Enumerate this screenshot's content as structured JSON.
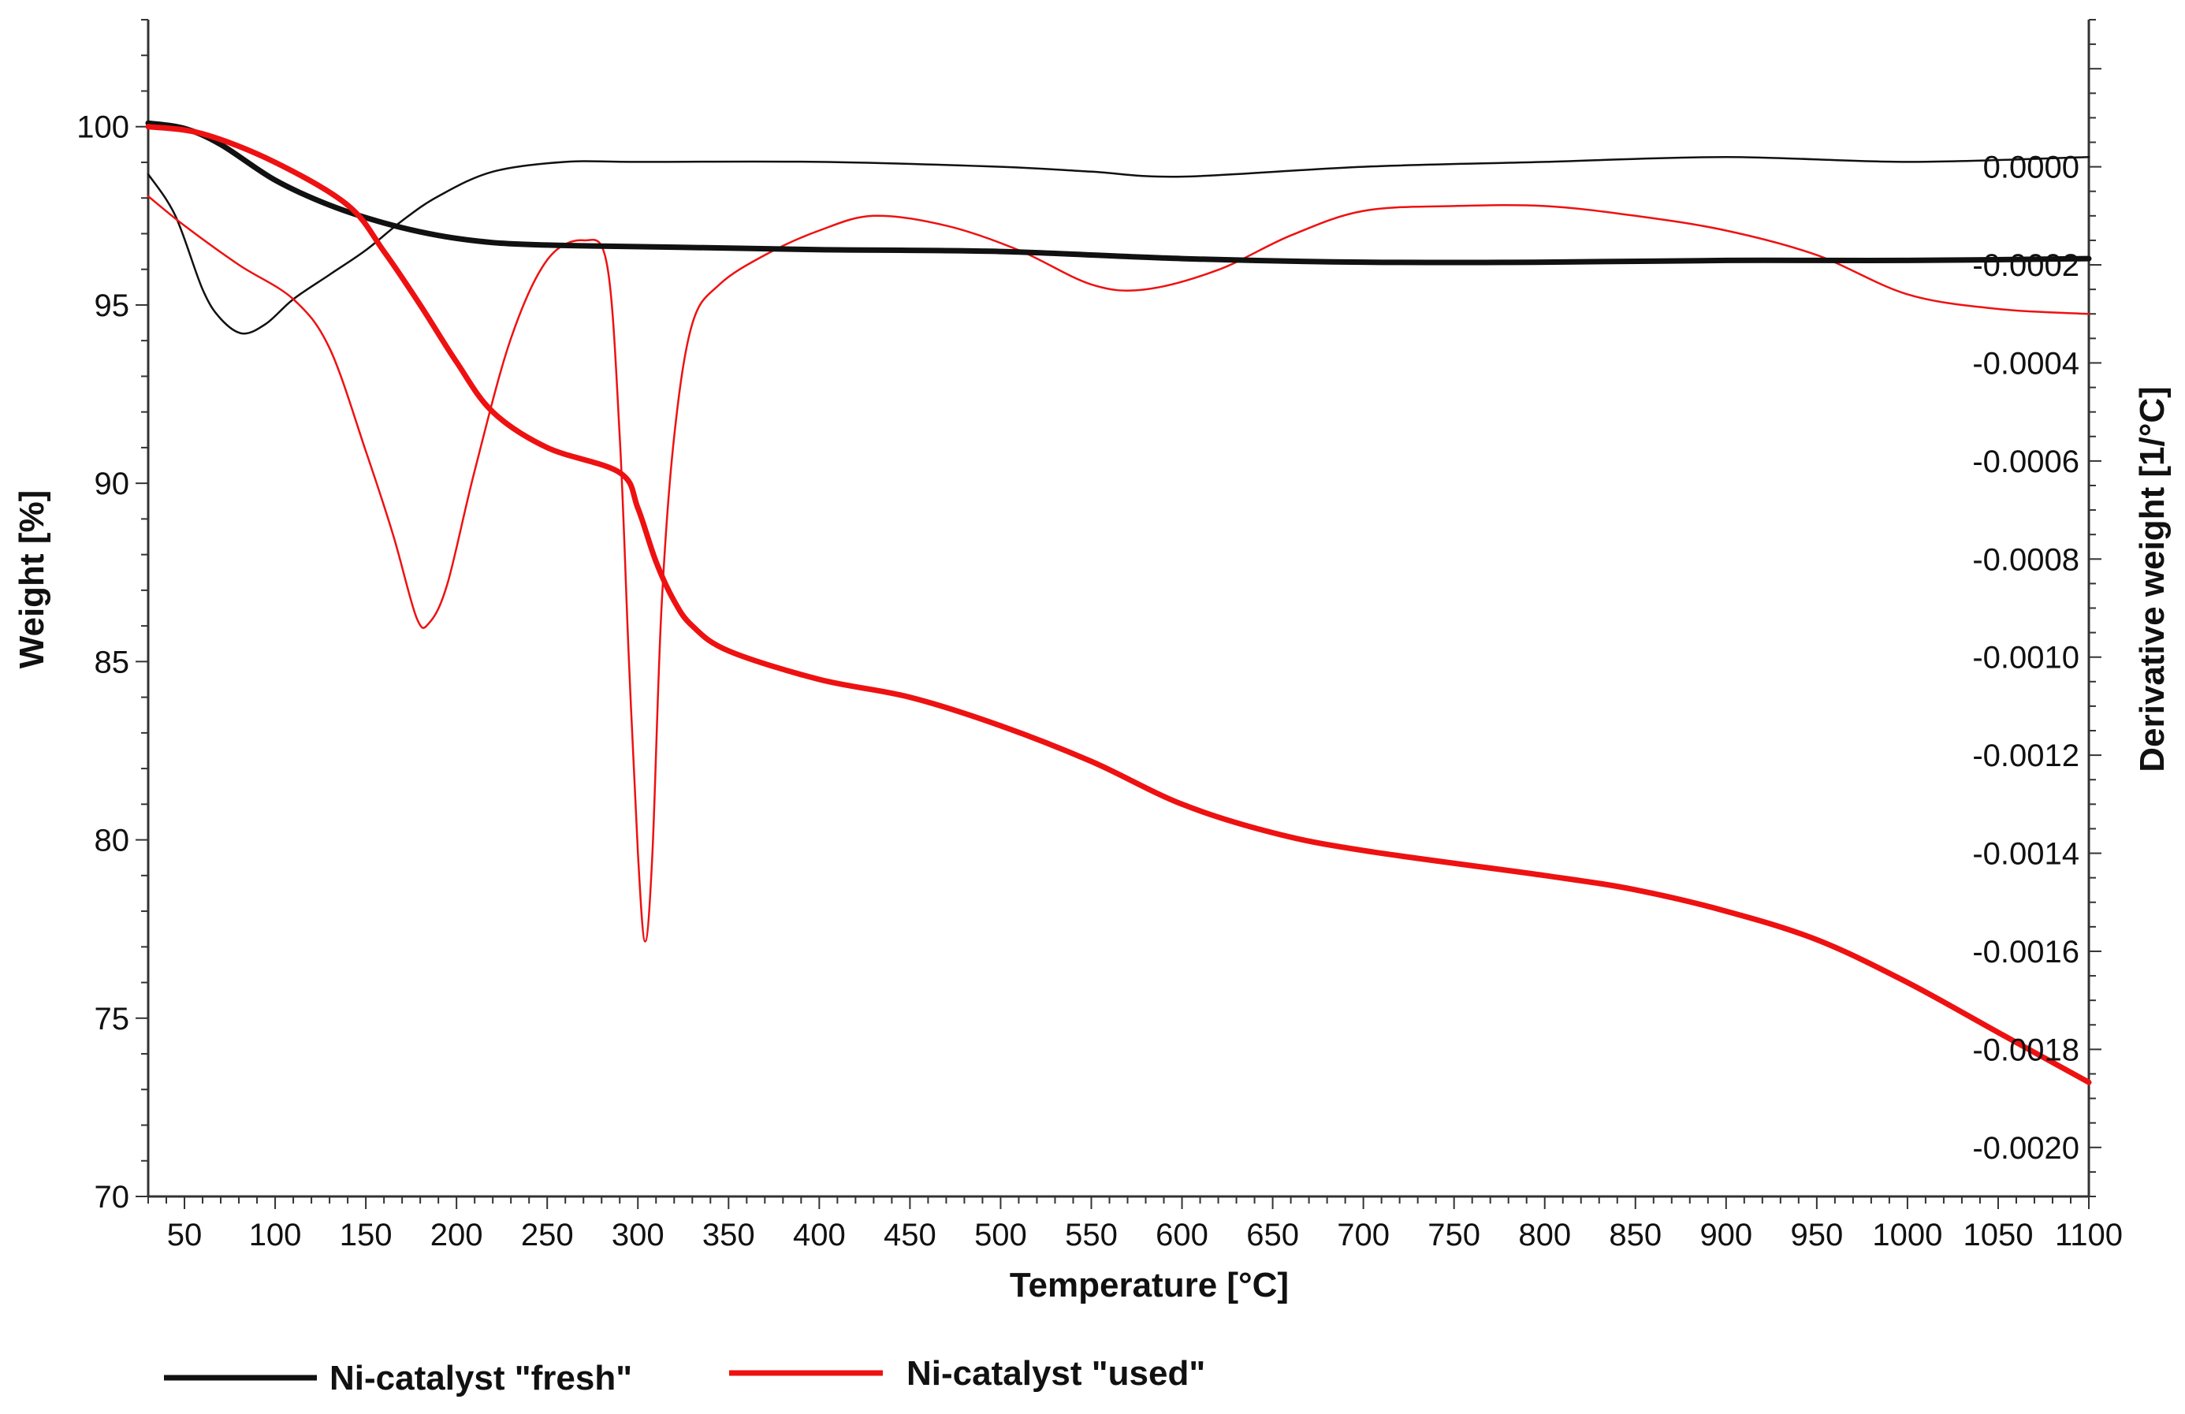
{
  "chart_data": {
    "type": "line",
    "title": "",
    "xlabel": "Temperature [°C]",
    "ylabel_left": "Weight [%]",
    "ylabel_right": "Derivative weight [1/°C]",
    "xlim": [
      30,
      1100
    ],
    "ylim_left": [
      70,
      103
    ],
    "ylim_right": [
      -0.0021,
      0.0003
    ],
    "x_ticks": [
      50,
      100,
      150,
      200,
      250,
      300,
      350,
      400,
      450,
      500,
      550,
      600,
      650,
      700,
      750,
      800,
      850,
      900,
      950,
      1000,
      1050,
      1100
    ],
    "y_left_ticks": [
      70,
      75,
      80,
      85,
      90,
      95,
      100
    ],
    "y_right_ticks": [
      "0.0000",
      "-0.0002",
      "-0.0004",
      "-0.0006",
      "-0.0008",
      "-0.0010",
      "-0.0012",
      "-0.0014",
      "-0.0016",
      "-0.0018",
      "-0.0020"
    ],
    "grid": false,
    "legend_position": "bottom",
    "series": [
      {
        "name": "Ni-catalyst \"fresh\"",
        "color": "#111111",
        "role": "weight",
        "axis": "left",
        "x": [
          30,
          50,
          70,
          100,
          130,
          160,
          190,
          220,
          250,
          280,
          320,
          400,
          500,
          600,
          700,
          800,
          900,
          1000,
          1100
        ],
        "y": [
          100.1,
          99.95,
          99.5,
          98.5,
          97.8,
          97.3,
          96.95,
          96.75,
          96.68,
          96.65,
          96.62,
          96.55,
          96.5,
          96.3,
          96.2,
          96.2,
          96.25,
          96.25,
          96.3
        ]
      },
      {
        "name": "Ni-catalyst \"used\"",
        "color": "#ee1111",
        "role": "weight",
        "axis": "left",
        "x": [
          30,
          60,
          100,
          140,
          160,
          180,
          200,
          220,
          250,
          290,
          300,
          310,
          320,
          330,
          350,
          400,
          450,
          500,
          550,
          600,
          650,
          700,
          800,
          850,
          900,
          950,
          1000,
          1050,
          1100
        ],
        "y": [
          100.0,
          99.8,
          99.0,
          97.8,
          96.5,
          95.0,
          93.4,
          92.0,
          91.0,
          90.3,
          89.3,
          87.8,
          86.7,
          86.0,
          85.3,
          84.5,
          84.0,
          83.2,
          82.2,
          81.0,
          80.2,
          79.7,
          79.0,
          78.6,
          78.0,
          77.2,
          76.0,
          74.6,
          73.2
        ]
      },
      {
        "name": "Ni-catalyst \"fresh\"",
        "color": "#111111",
        "role": "derivative",
        "axis": "right",
        "x": [
          30,
          45,
          60,
          70,
          82,
          95,
          110,
          130,
          150,
          170,
          190,
          220,
          260,
          300,
          400,
          500,
          550,
          600,
          700,
          800,
          900,
          1000,
          1100
        ],
        "y": [
          -1.5e-05,
          -0.0001,
          -0.00025,
          -0.00031,
          -0.00034,
          -0.00032,
          -0.00027,
          -0.00022,
          -0.00017,
          -0.00011,
          -6e-05,
          -1e-05,
          1e-05,
          1e-05,
          1e-05,
          0.0,
          -1e-05,
          -2e-05,
          0.0,
          1e-05,
          2e-05,
          1e-05,
          2e-05
        ]
      },
      {
        "name": "Ni-catalyst \"used\"",
        "color": "#ee1111",
        "role": "derivative",
        "axis": "right",
        "x": [
          30,
          50,
          80,
          110,
          130,
          150,
          165,
          178,
          185,
          195,
          210,
          230,
          250,
          270,
          283,
          290,
          295,
          300,
          304,
          308,
          313,
          320,
          330,
          345,
          370,
          400,
          430,
          470,
          510,
          550,
          580,
          620,
          660,
          700,
          750,
          800,
          850,
          900,
          950,
          1000,
          1050,
          1100
        ],
        "y": [
          -6e-05,
          -0.00012,
          -0.0002,
          -0.00027,
          -0.00037,
          -0.00058,
          -0.00075,
          -0.00092,
          -0.00093,
          -0.00085,
          -0.00062,
          -0.00035,
          -0.00019,
          -0.00015,
          -0.0002,
          -0.00055,
          -0.001,
          -0.0014,
          -0.00158,
          -0.0014,
          -0.0009,
          -0.00055,
          -0.00032,
          -0.00024,
          -0.00018,
          -0.00013,
          -0.0001,
          -0.00012,
          -0.00017,
          -0.00024,
          -0.00025,
          -0.00021,
          -0.00014,
          -9e-05,
          -8e-05,
          -8e-05,
          -0.0001,
          -0.00013,
          -0.00018,
          -0.00026,
          -0.00029,
          -0.0003
        ]
      }
    ]
  }
}
